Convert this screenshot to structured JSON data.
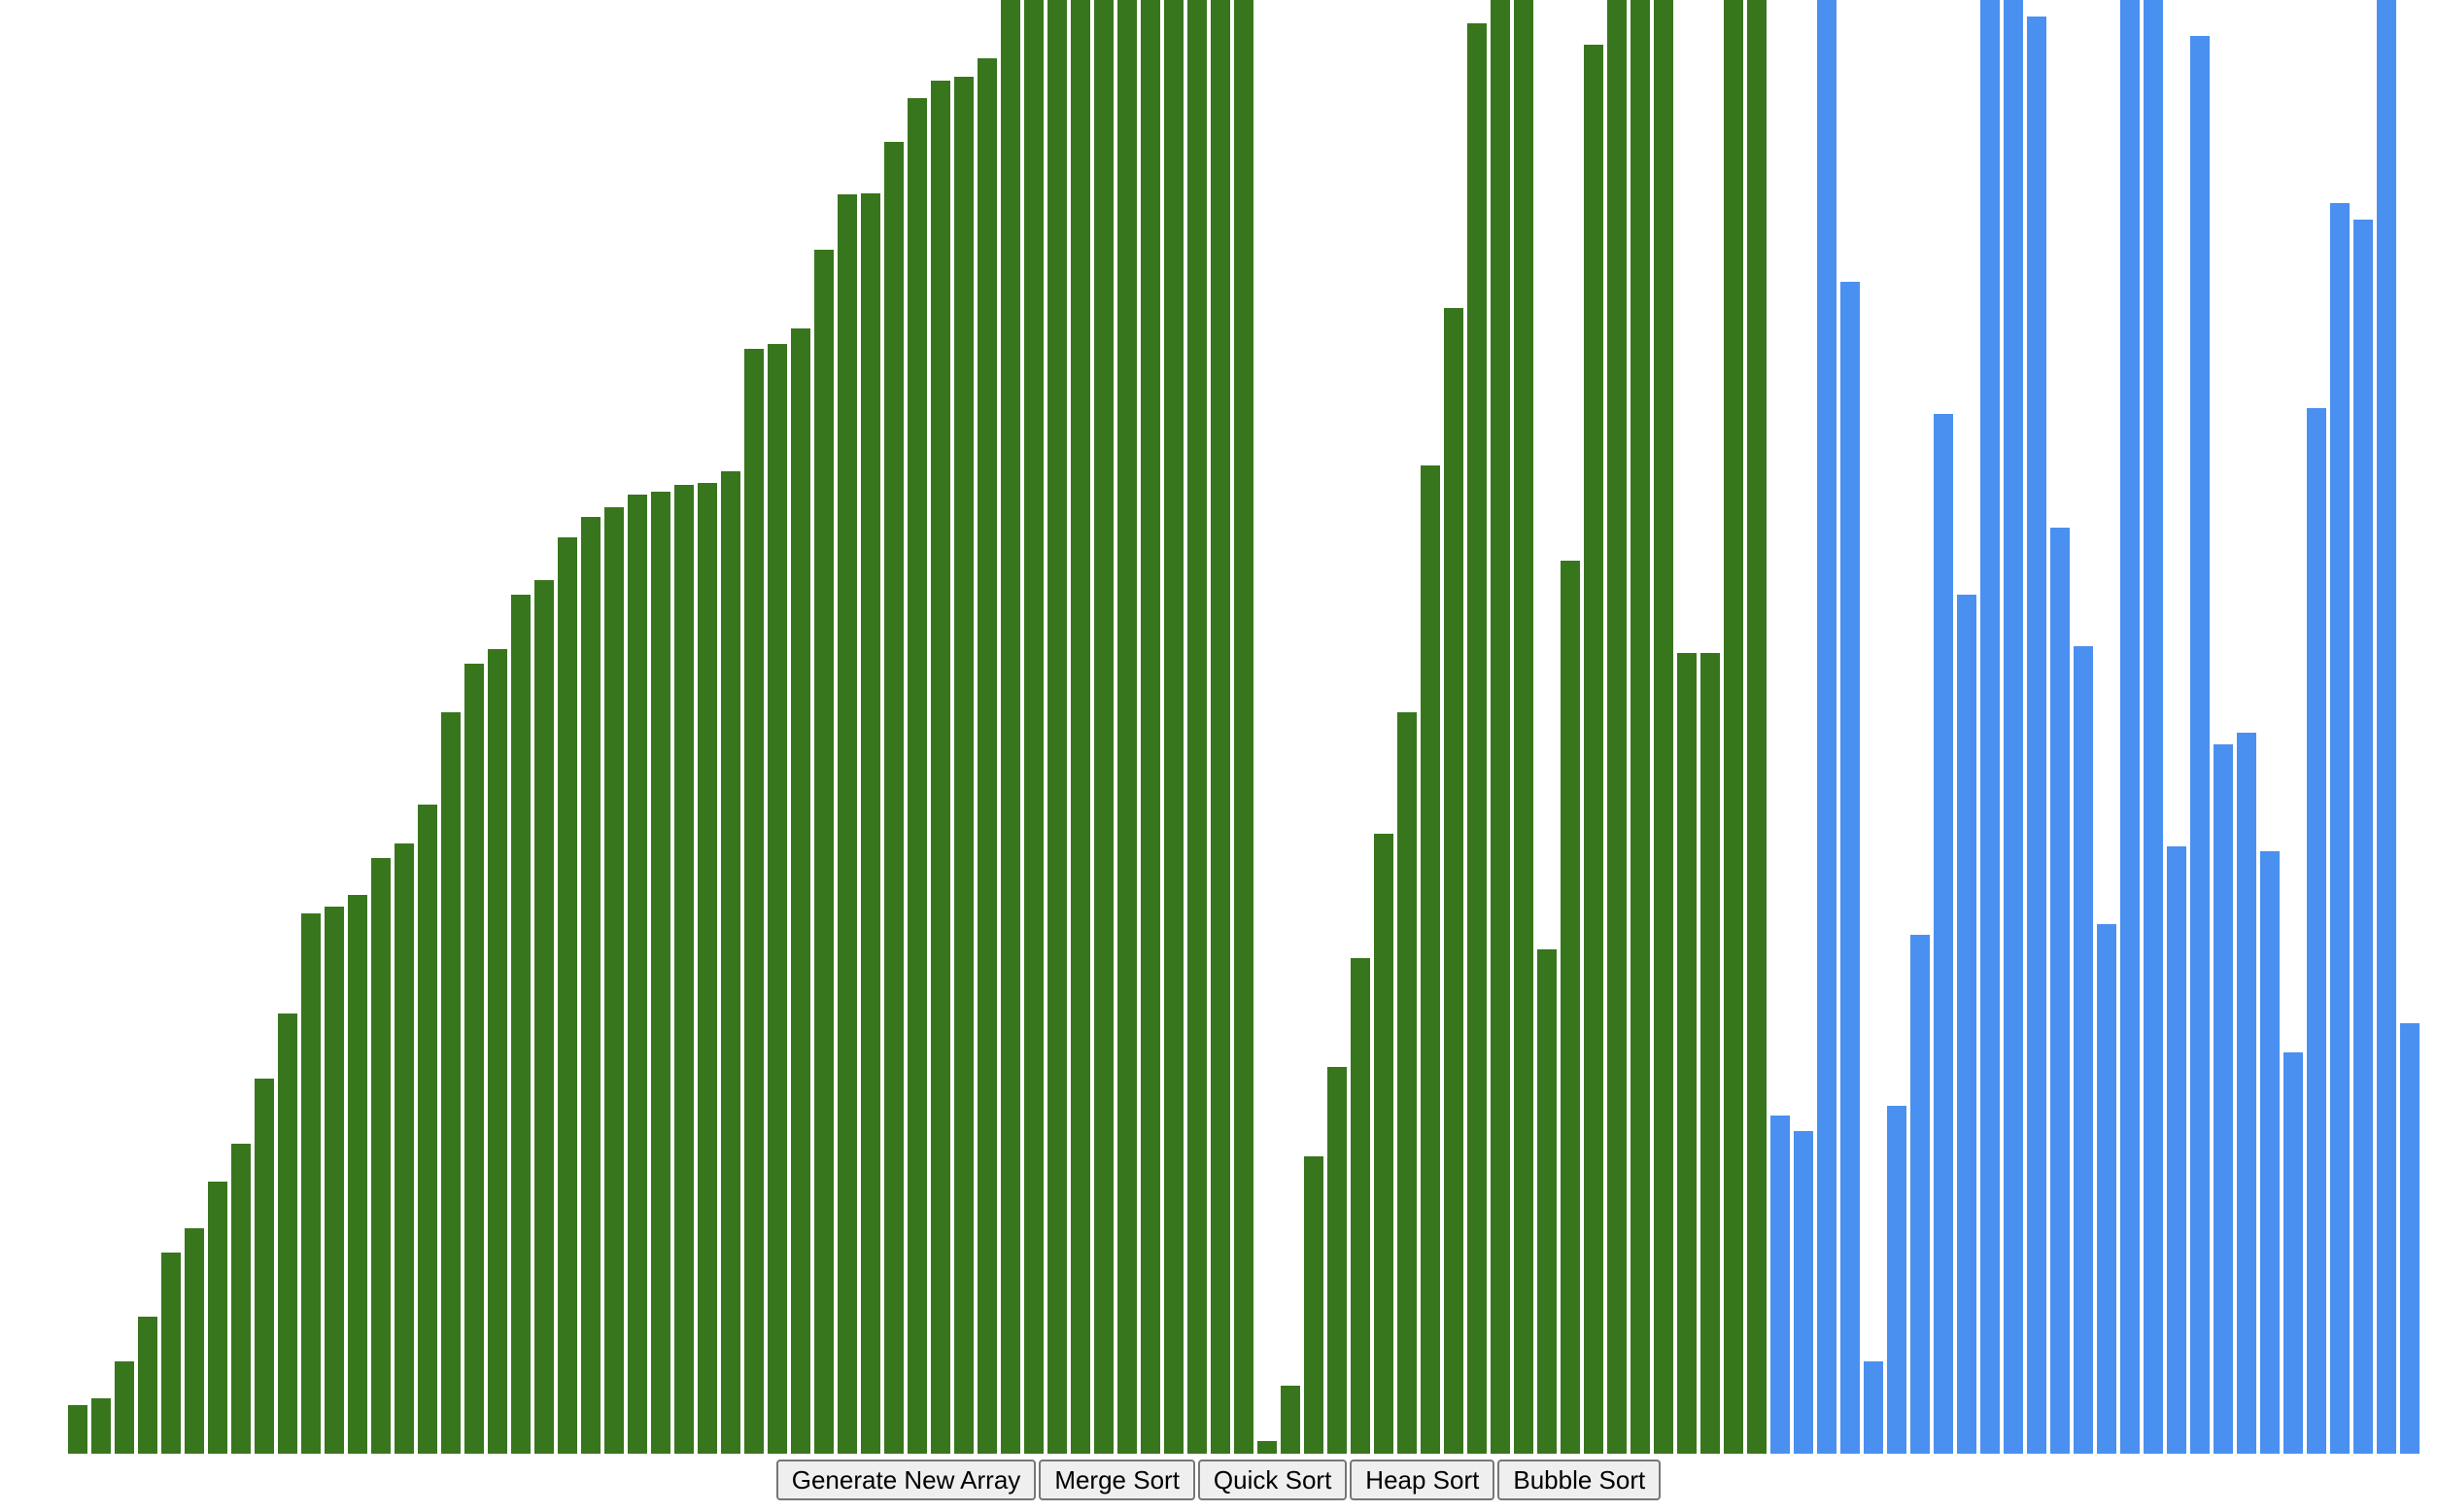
{
  "controls": {
    "generate_label": "Generate New Array",
    "merge_label": "Merge Sort",
    "quick_label": "Quick Sort",
    "heap_label": "Heap Sort",
    "bubble_label": "Bubble Sort"
  },
  "colors": {
    "sorted": "#38761d",
    "unsorted": "#4a90f0"
  },
  "bars": {
    "sorted_count": 73,
    "max_value": 1500,
    "values": [
      50,
      57,
      95,
      141,
      208,
      233,
      281,
      320,
      387,
      454,
      557,
      565,
      577,
      615,
      630,
      670,
      765,
      815,
      830,
      886,
      901,
      946,
      967,
      977,
      990,
      993,
      1000,
      1002,
      1014,
      1140,
      1145,
      1161,
      1242,
      1299,
      1300,
      1354,
      1399,
      1417,
      1421,
      1440,
      1500,
      1500,
      1500,
      1500,
      1500,
      1500,
      1500,
      1500,
      1500,
      1500,
      1500,
      13,
      70,
      307,
      399,
      511,
      640,
      765,
      1020,
      1182,
      1476,
      1500,
      1500,
      520,
      921,
      1454,
      1500,
      1500,
      1500,
      826,
      826,
      1500,
      1500,
      349,
      333,
      1500,
      1209,
      95,
      359,
      535,
      1073,
      886,
      1500,
      1500,
      1483,
      956,
      833,
      546,
      1500,
      1500,
      627,
      1463,
      732,
      744,
      622,
      414,
      1079,
      1290,
      1273,
      1500,
      444
    ]
  }
}
